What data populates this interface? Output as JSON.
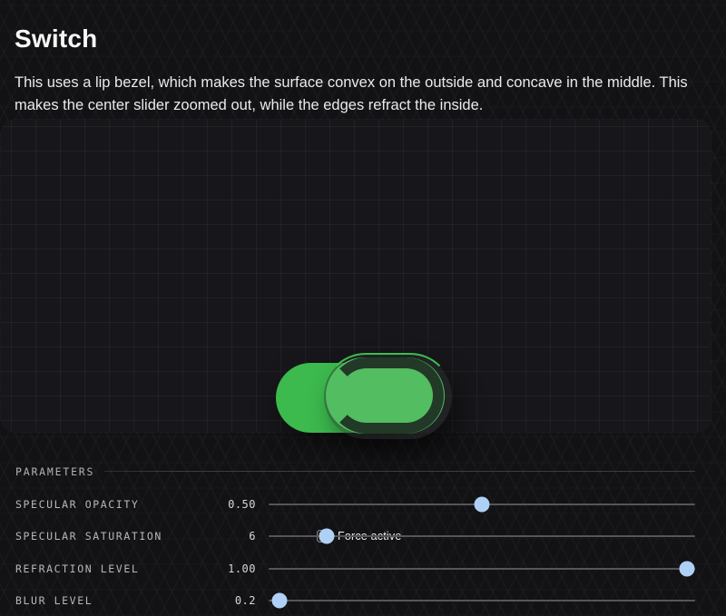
{
  "header": {
    "title": "Switch",
    "description": "This uses a lip bezel, which makes the surface convex on the outside and concave in the middle. This makes the center slider zoomed out, while the edges refract the inside."
  },
  "preview": {
    "switch_state": "active",
    "force_active": {
      "label": "Force active",
      "checked": false
    }
  },
  "parameters": {
    "heading": "PARAMETERS",
    "sliders": [
      {
        "label": "SPECULAR OPACITY",
        "value": "0.50",
        "percent": 50
      },
      {
        "label": "SPECULAR SATURATION",
        "value": "6",
        "percent": 13.6
      },
      {
        "label": "REFRACTION LEVEL",
        "value": "1.00",
        "percent": 98.1
      },
      {
        "label": "BLUR LEVEL",
        "value": "0.2",
        "percent": 2.6
      }
    ]
  },
  "colors": {
    "switch_green": "#3cba4e",
    "glass_inner_green": "#52bd61",
    "glass_rim": "#161818",
    "slider_thumb": "#aed0f5",
    "slider_track": "#55555a",
    "panel_background": "#17171b",
    "page_background": "#121214",
    "label_gray": "#b4b8bc"
  }
}
